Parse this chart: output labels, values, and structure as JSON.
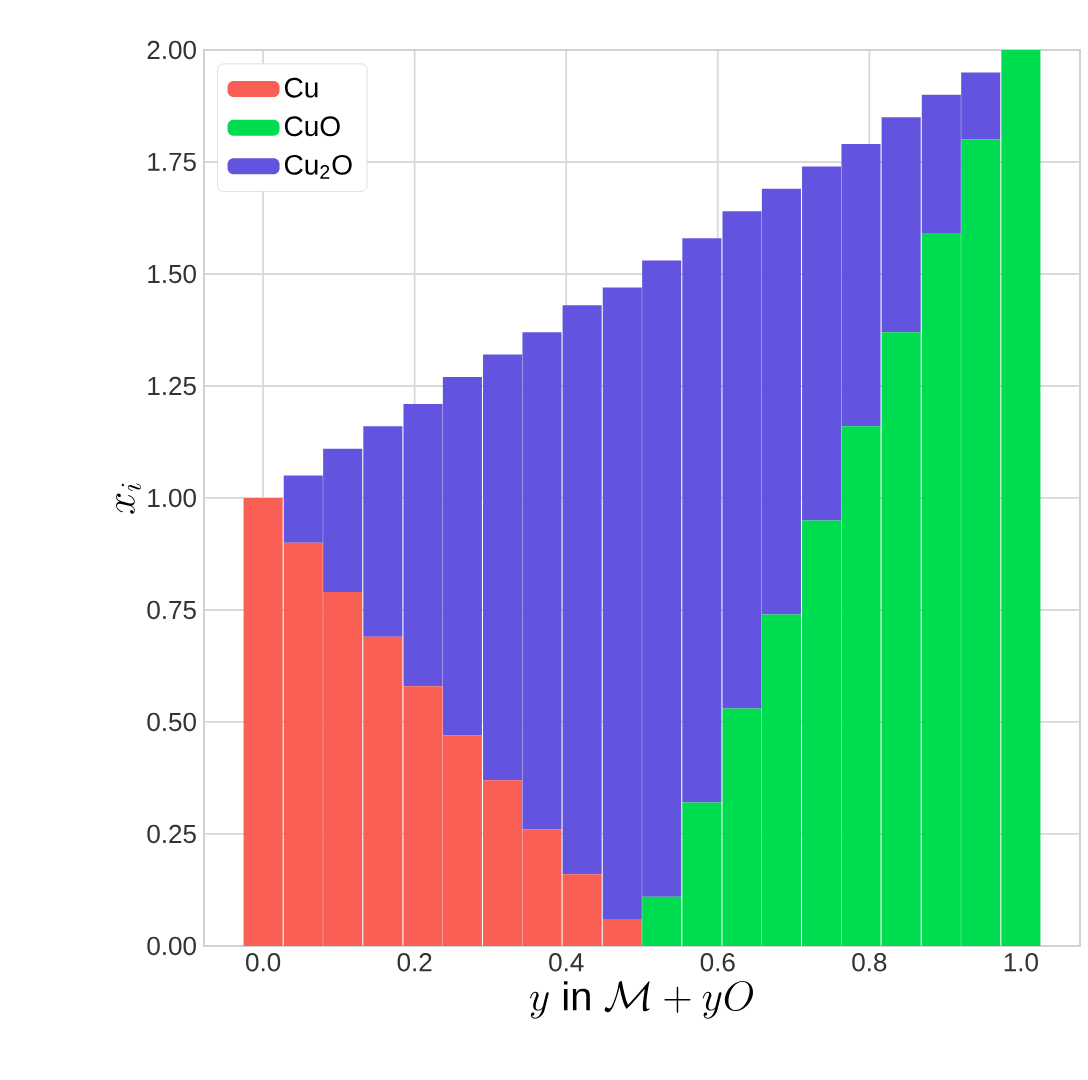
{
  "chart_data": {
    "type": "bar",
    "stacked": true,
    "xlabel": "y \\text{ in } \\mathcal{M}+yO",
    "ylabel": "x_i",
    "x": [
      0,
      0.053,
      0.105,
      0.158,
      0.211,
      0.263,
      0.316,
      0.368,
      0.421,
      0.474,
      0.526,
      0.579,
      0.632,
      0.684,
      0.737,
      0.789,
      0.842,
      0.895,
      0.947,
      1.0
    ],
    "series": [
      {
        "name": "Cu",
        "color": "#fa5f55",
        "values": [
          1.0,
          0.9,
          0.79,
          0.69,
          0.58,
          0.47,
          0.37,
          0.26,
          0.16,
          0.06,
          0,
          0,
          0,
          0,
          0,
          0,
          0,
          0,
          0,
          0
        ]
      },
      {
        "name": "CuO",
        "color": "#00dc50",
        "values": [
          0,
          0,
          0,
          0,
          0,
          0,
          0,
          0,
          0,
          0,
          0.11,
          0.32,
          0.53,
          0.74,
          0.95,
          1.16,
          1.37,
          1.59,
          1.8,
          2.0
        ]
      },
      {
        "name": "Cu$_{2}$O",
        "color": "#6254de",
        "values": [
          0,
          0.15,
          0.32,
          0.47,
          0.63,
          0.8,
          0.95,
          1.11,
          1.27,
          1.41,
          1.42,
          1.26,
          1.11,
          0.95,
          0.79,
          0.63,
          0.48,
          0.31,
          0.15,
          0
        ]
      }
    ],
    "xlim": [
      -0.078,
      1.078
    ],
    "ylim": [
      0,
      2
    ],
    "xticks": [
      {
        "value": 0,
        "label": "0.0"
      },
      {
        "value": 0.2,
        "label": "0.2"
      },
      {
        "value": 0.4,
        "label": "0.4"
      },
      {
        "value": 0.6,
        "label": "0.6"
      },
      {
        "value": 0.8,
        "label": "0.8"
      },
      {
        "value": 1.0,
        "label": "1.0"
      }
    ],
    "yticks": [
      {
        "value": 0,
        "label": "0.00"
      },
      {
        "value": 0.25,
        "label": "0.25"
      },
      {
        "value": 0.5,
        "label": "0.50"
      },
      {
        "value": 0.75,
        "label": "0.75"
      },
      {
        "value": 1.0,
        "label": "1.00"
      },
      {
        "value": 1.25,
        "label": "1.25"
      },
      {
        "value": 1.5,
        "label": "1.50"
      },
      {
        "value": 1.75,
        "label": "1.75"
      },
      {
        "value": 2.0,
        "label": "2.00"
      }
    ],
    "grid": true,
    "legend": "top left"
  }
}
